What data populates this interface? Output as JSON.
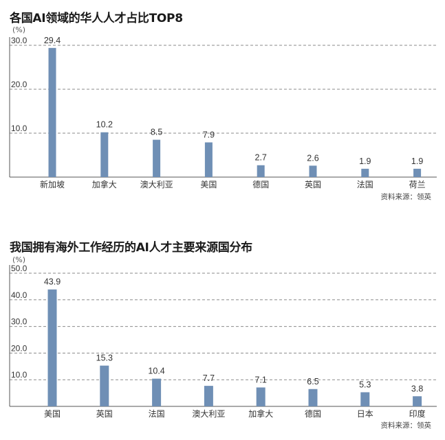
{
  "chart_data": [
    {
      "type": "bar",
      "title": "各国AI领域的华人人才占比TOP8",
      "unit": "(%)",
      "categories": [
        "新加坡",
        "加拿大",
        "澳大利亚",
        "美国",
        "德国",
        "英国",
        "法国",
        "荷兰"
      ],
      "values": [
        29.4,
        10.2,
        8.5,
        7.9,
        2.7,
        2.6,
        1.9,
        1.9
      ],
      "value_labels": [
        "29.4",
        "10.2",
        "8.5",
        "7.9",
        "2.7",
        "2.6",
        "1.9",
        "1.9"
      ],
      "yticks": [
        "10.0",
        "20.0",
        "30.0"
      ],
      "ylim": [
        0,
        30
      ],
      "grid": true,
      "source": "资料来源：领英",
      "bar_color": "#6f8fb5"
    },
    {
      "type": "bar",
      "title": "我国拥有海外工作经历的AI人才主要来源国分布",
      "unit": "(%)",
      "categories": [
        "美国",
        "英国",
        "法国",
        "澳大利亚",
        "加拿大",
        "德国",
        "日本",
        "印度"
      ],
      "values": [
        43.9,
        15.3,
        10.4,
        7.7,
        7.1,
        6.5,
        5.3,
        3.8
      ],
      "value_labels": [
        "43.9",
        "15.3",
        "10.4",
        "7.7",
        "7.1",
        "6.5",
        "5.3",
        "3.8"
      ],
      "yticks": [
        "10.0",
        "20.0",
        "30.0",
        "40.0",
        "50.0"
      ],
      "ylim": [
        0,
        50
      ],
      "grid": true,
      "source": "资料来源：领英",
      "bar_color": "#6f8fb5"
    }
  ]
}
